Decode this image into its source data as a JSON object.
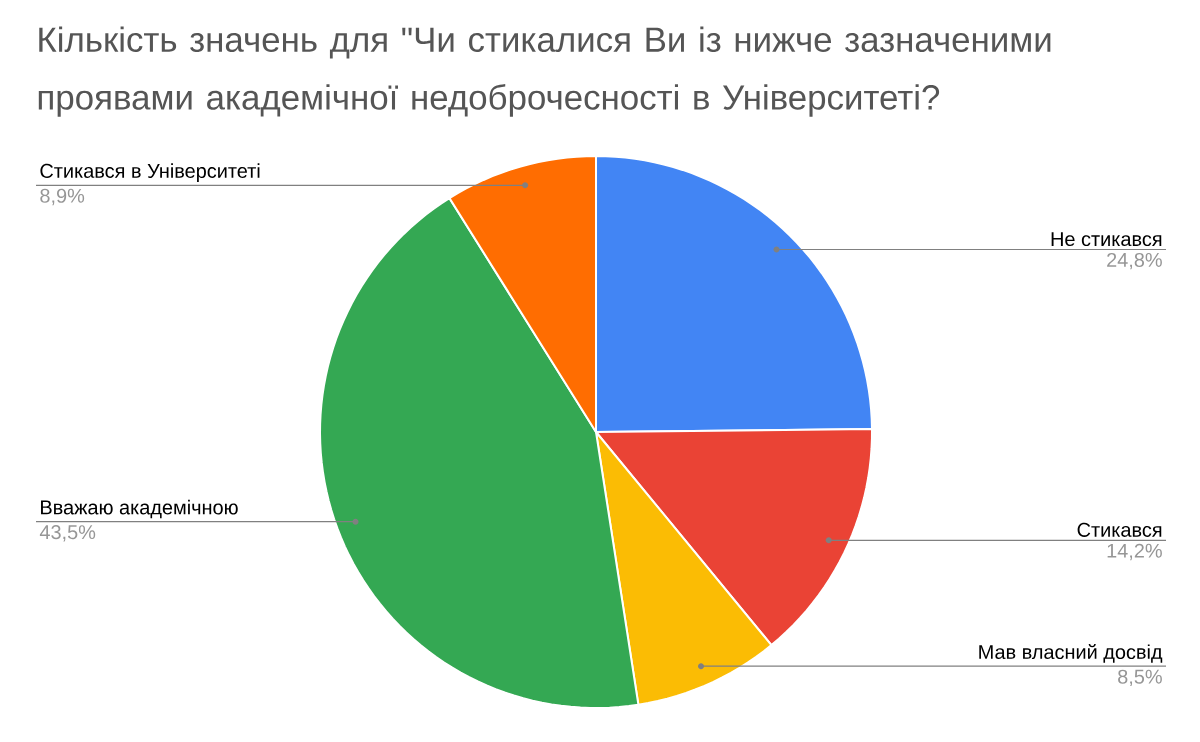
{
  "chart_data": {
    "type": "pie",
    "title": "Кількість значень для \"Чи стикалися Ви із нижче зазначеними проявами академічної недоброчесності в Університеті?",
    "categories": [
      "Не стикався",
      "Стикався",
      "Мав власний досвід",
      "Вважаю академічною",
      "Стикався в Університеті"
    ],
    "values": [
      24.8,
      14.2,
      8.5,
      43.5,
      8.9
    ],
    "value_labels": [
      "24,8%",
      "14,2%",
      "8,5%",
      "43,5%",
      "8,9%"
    ],
    "colors": [
      "#4285f4",
      "#ea4335",
      "#fbbc04",
      "#34a853",
      "#ff6d01"
    ]
  }
}
